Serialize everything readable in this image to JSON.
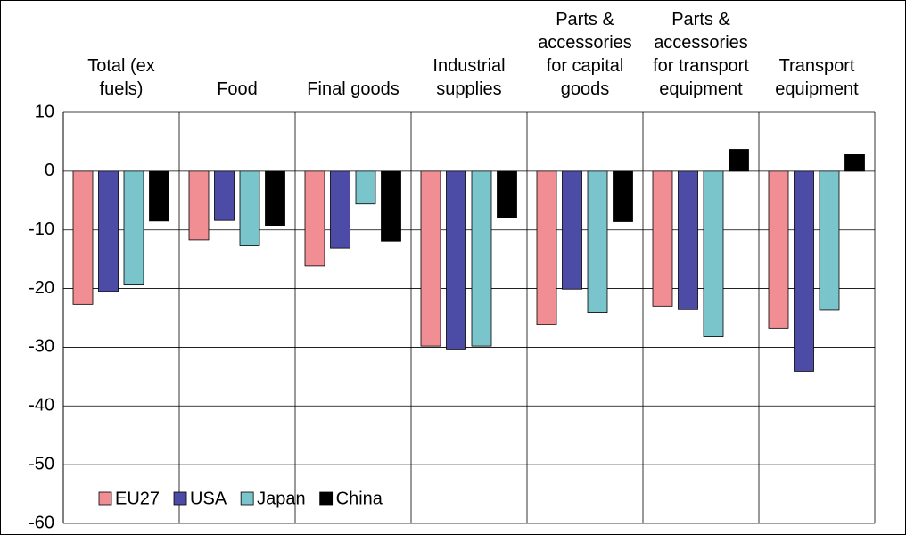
{
  "chart_data": {
    "type": "bar",
    "categories": [
      "Total (ex fuels)",
      "Food",
      "Final goods",
      "Industrial supplies",
      "Parts & accessories for capital goods",
      "Parts & accessories for transport equipment",
      "Transport equipment"
    ],
    "series": [
      {
        "name": "EU27",
        "color": "#f08e94",
        "values": [
          -22.7,
          -11.7,
          -16.1,
          -29.8,
          -26.1,
          -23.0,
          -26.8
        ]
      },
      {
        "name": "USA",
        "color": "#4c4ca6",
        "values": [
          -20.5,
          -8.4,
          -13.1,
          -30.3,
          -20.1,
          -23.6,
          -34.1
        ]
      },
      {
        "name": "Japan",
        "color": "#7ac5cc",
        "values": [
          -19.4,
          -12.7,
          -5.6,
          -29.8,
          -24.1,
          -28.2,
          -23.7
        ]
      },
      {
        "name": "China",
        "color": "#000000",
        "values": [
          -8.5,
          -9.3,
          -11.9,
          -8.0,
          -8.6,
          3.7,
          2.8
        ]
      }
    ],
    "ylim": [
      -60,
      10
    ],
    "yticks": [
      10,
      0,
      -10,
      -20,
      -30,
      -40,
      -50,
      -60
    ],
    "grid": true,
    "legend": "lower-left"
  }
}
